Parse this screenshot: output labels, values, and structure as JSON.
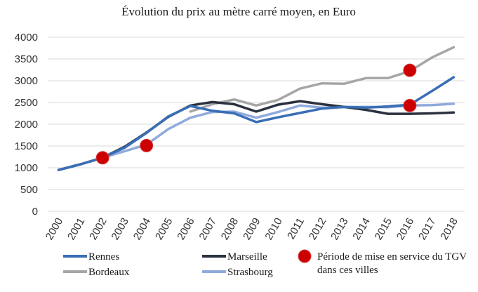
{
  "chart_data": {
    "type": "line",
    "title": "Évolution du prix au mètre carré moyen, en Euro",
    "xlabel": "",
    "ylabel": "",
    "ylim": [
      0,
      4000
    ],
    "yticks": [
      0,
      500,
      1000,
      1500,
      2000,
      2500,
      3000,
      3500,
      4000
    ],
    "x": [
      "2000",
      "2001",
      "2002",
      "2003",
      "2004",
      "2005",
      "2006",
      "2007",
      "2008",
      "2009",
      "2010",
      "2011",
      "2012",
      "2013",
      "2014",
      "2015",
      "2016",
      "2017",
      "2018"
    ],
    "series": [
      {
        "name": "Rennes",
        "color": "#3a6eb5",
        "values": [
          950,
          1080,
          1230,
          1460,
          1800,
          2180,
          2420,
          2310,
          2250,
          2050,
          2160,
          2260,
          2360,
          2400,
          2380,
          2410,
          2450,
          2760,
          3080
        ]
      },
      {
        "name": "Marseille",
        "color": "#2b323f",
        "values": [
          950,
          1080,
          1230,
          1480,
          1810,
          2170,
          2430,
          2510,
          2460,
          2290,
          2450,
          2530,
          2460,
          2400,
          2330,
          2240,
          2240,
          2250,
          2270
        ]
      },
      {
        "name": "Bordeaux",
        "color": "#a6a6a6",
        "values": [
          null,
          null,
          null,
          null,
          null,
          null,
          2290,
          2460,
          2570,
          2430,
          2560,
          2820,
          2940,
          2930,
          3060,
          3060,
          3220,
          3530,
          3770
        ]
      },
      {
        "name": "Strasbourg",
        "color": "#90aadc",
        "values": [
          950,
          1080,
          1230,
          1380,
          1530,
          1890,
          2150,
          2280,
          2290,
          2150,
          2280,
          2430,
          2380,
          2390,
          2400,
          2390,
          2430,
          2440,
          2470
        ]
      }
    ],
    "markers": {
      "name": "Période de mise en service du TGV dans ces villes",
      "color": "#cc0000",
      "points": [
        {
          "x": "2002",
          "y": 1230
        },
        {
          "x": "2004",
          "y": 1510
        },
        {
          "x": "2016",
          "y": 3240
        },
        {
          "x": "2016",
          "y": 2430
        }
      ]
    },
    "legend": [
      {
        "label": "Rennes",
        "type": "line",
        "color": "#3a6eb5"
      },
      {
        "label": "Marseille",
        "type": "line",
        "color": "#2b323f"
      },
      {
        "label_lines": [
          "Période de mise en service du TGV",
          "dans ces villes"
        ],
        "type": "dot",
        "color": "#cc0000"
      },
      {
        "label": "Bordeaux",
        "type": "line",
        "color": "#a6a6a6"
      },
      {
        "label": "Strasbourg",
        "type": "line",
        "color": "#90aadc"
      }
    ]
  }
}
